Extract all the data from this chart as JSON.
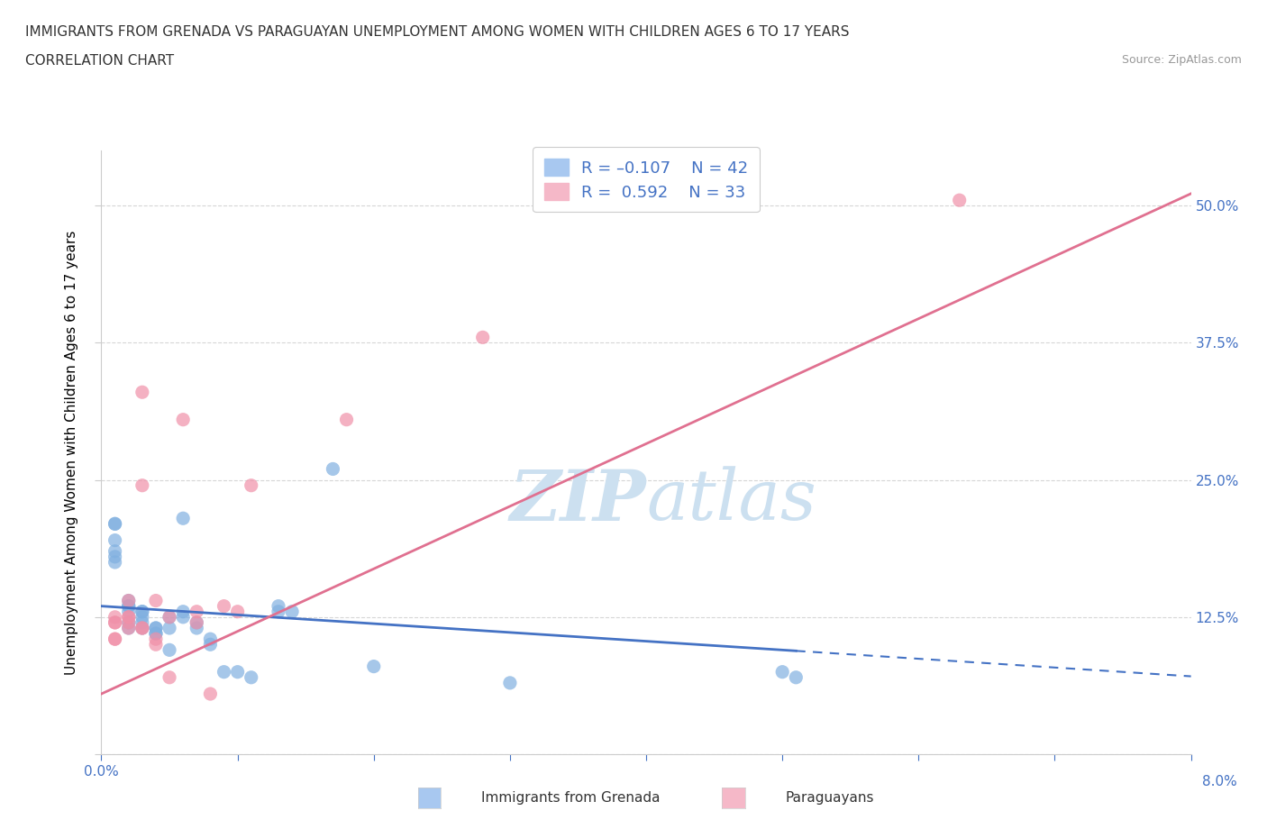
{
  "title_line1": "IMMIGRANTS FROM GRENADA VS PARAGUAYAN UNEMPLOYMENT AMONG WOMEN WITH CHILDREN AGES 6 TO 17 YEARS",
  "title_line2": "CORRELATION CHART",
  "source_text": "Source: ZipAtlas.com",
  "ylabel": "Unemployment Among Women with Children Ages 6 to 17 years",
  "xlim": [
    0.0,
    0.08
  ],
  "ylim": [
    0.0,
    0.55
  ],
  "xticks": [
    0.0,
    0.01,
    0.02,
    0.03,
    0.04,
    0.05,
    0.06,
    0.07,
    0.08
  ],
  "yticks": [
    0.0,
    0.125,
    0.25,
    0.375,
    0.5
  ],
  "ytick_labels": [
    "",
    "12.5%",
    "25.0%",
    "37.5%",
    "50.0%"
  ],
  "color_blue": "#a8c8f0",
  "color_pink": "#f5b8c8",
  "scatter_color_blue": "#80b0e0",
  "scatter_color_pink": "#f090a8",
  "line_color_blue": "#4472c4",
  "line_color_pink": "#e07090",
  "grid_color": "#cccccc",
  "axis_color": "#cccccc",
  "right_ytick_color": "#4472c4",
  "watermark_color": "#cce0f0",
  "blue_x": [
    0.001,
    0.001,
    0.001,
    0.001,
    0.001,
    0.001,
    0.002,
    0.002,
    0.002,
    0.002,
    0.002,
    0.002,
    0.003,
    0.003,
    0.003,
    0.003,
    0.003,
    0.004,
    0.004,
    0.004,
    0.004,
    0.005,
    0.005,
    0.005,
    0.006,
    0.006,
    0.006,
    0.007,
    0.007,
    0.008,
    0.008,
    0.009,
    0.01,
    0.011,
    0.013,
    0.013,
    0.014,
    0.017,
    0.02,
    0.03,
    0.05,
    0.051
  ],
  "blue_y": [
    0.195,
    0.21,
    0.185,
    0.18,
    0.175,
    0.21,
    0.14,
    0.135,
    0.135,
    0.13,
    0.12,
    0.115,
    0.13,
    0.13,
    0.125,
    0.12,
    0.115,
    0.115,
    0.11,
    0.11,
    0.115,
    0.125,
    0.115,
    0.095,
    0.215,
    0.13,
    0.125,
    0.12,
    0.115,
    0.105,
    0.1,
    0.075,
    0.075,
    0.07,
    0.135,
    0.13,
    0.13,
    0.26,
    0.08,
    0.065,
    0.075,
    0.07
  ],
  "pink_x": [
    0.001,
    0.001,
    0.001,
    0.001,
    0.001,
    0.002,
    0.002,
    0.002,
    0.002,
    0.002,
    0.003,
    0.003,
    0.003,
    0.003,
    0.004,
    0.004,
    0.004,
    0.005,
    0.005,
    0.006,
    0.007,
    0.007,
    0.008,
    0.009,
    0.01,
    0.011,
    0.018,
    0.028,
    0.063
  ],
  "pink_y": [
    0.105,
    0.12,
    0.12,
    0.125,
    0.105,
    0.125,
    0.125,
    0.14,
    0.12,
    0.115,
    0.33,
    0.245,
    0.115,
    0.115,
    0.14,
    0.105,
    0.1,
    0.125,
    0.07,
    0.305,
    0.12,
    0.13,
    0.055,
    0.135,
    0.13,
    0.245,
    0.305,
    0.38,
    0.505
  ],
  "blue_line_x_start": 0.0,
  "blue_line_x_solid_end": 0.051,
  "blue_line_x_dash_end": 0.08,
  "blue_line_y_intercept": 0.135,
  "blue_line_slope": -0.8,
  "pink_line_x_start": 0.0,
  "pink_line_x_end": 0.08,
  "pink_line_y_intercept": 0.055,
  "pink_line_slope": 5.7
}
